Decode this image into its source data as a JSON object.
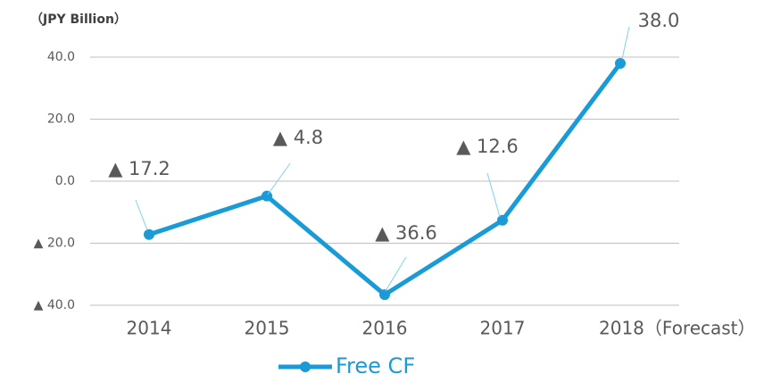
{
  "chart_data": {
    "type": "line",
    "y_axis_label": "（JPY Billion）",
    "categories": [
      "2014",
      "2015",
      "2016",
      "2017",
      "2018（Forecast）"
    ],
    "series": [
      {
        "name": "Free CF",
        "color": "#1a9ad6",
        "values": [
          -17.2,
          -4.8,
          -36.6,
          -12.6,
          38.0
        ],
        "value_labels": [
          "▲ 17.2",
          "▲ 4.8",
          "▲ 36.6",
          "▲ 12.6",
          "38.0"
        ]
      }
    ],
    "ylim": [
      -40,
      40
    ],
    "yticks": [
      {
        "value": -40,
        "label": "▲ 40.0"
      },
      {
        "value": -20,
        "label": "▲ 20.0"
      },
      {
        "value": 0,
        "label": "0.0"
      },
      {
        "value": 20,
        "label": "20.0"
      },
      {
        "value": 40,
        "label": "40.0"
      }
    ],
    "grid": true,
    "legend": "bottom"
  }
}
